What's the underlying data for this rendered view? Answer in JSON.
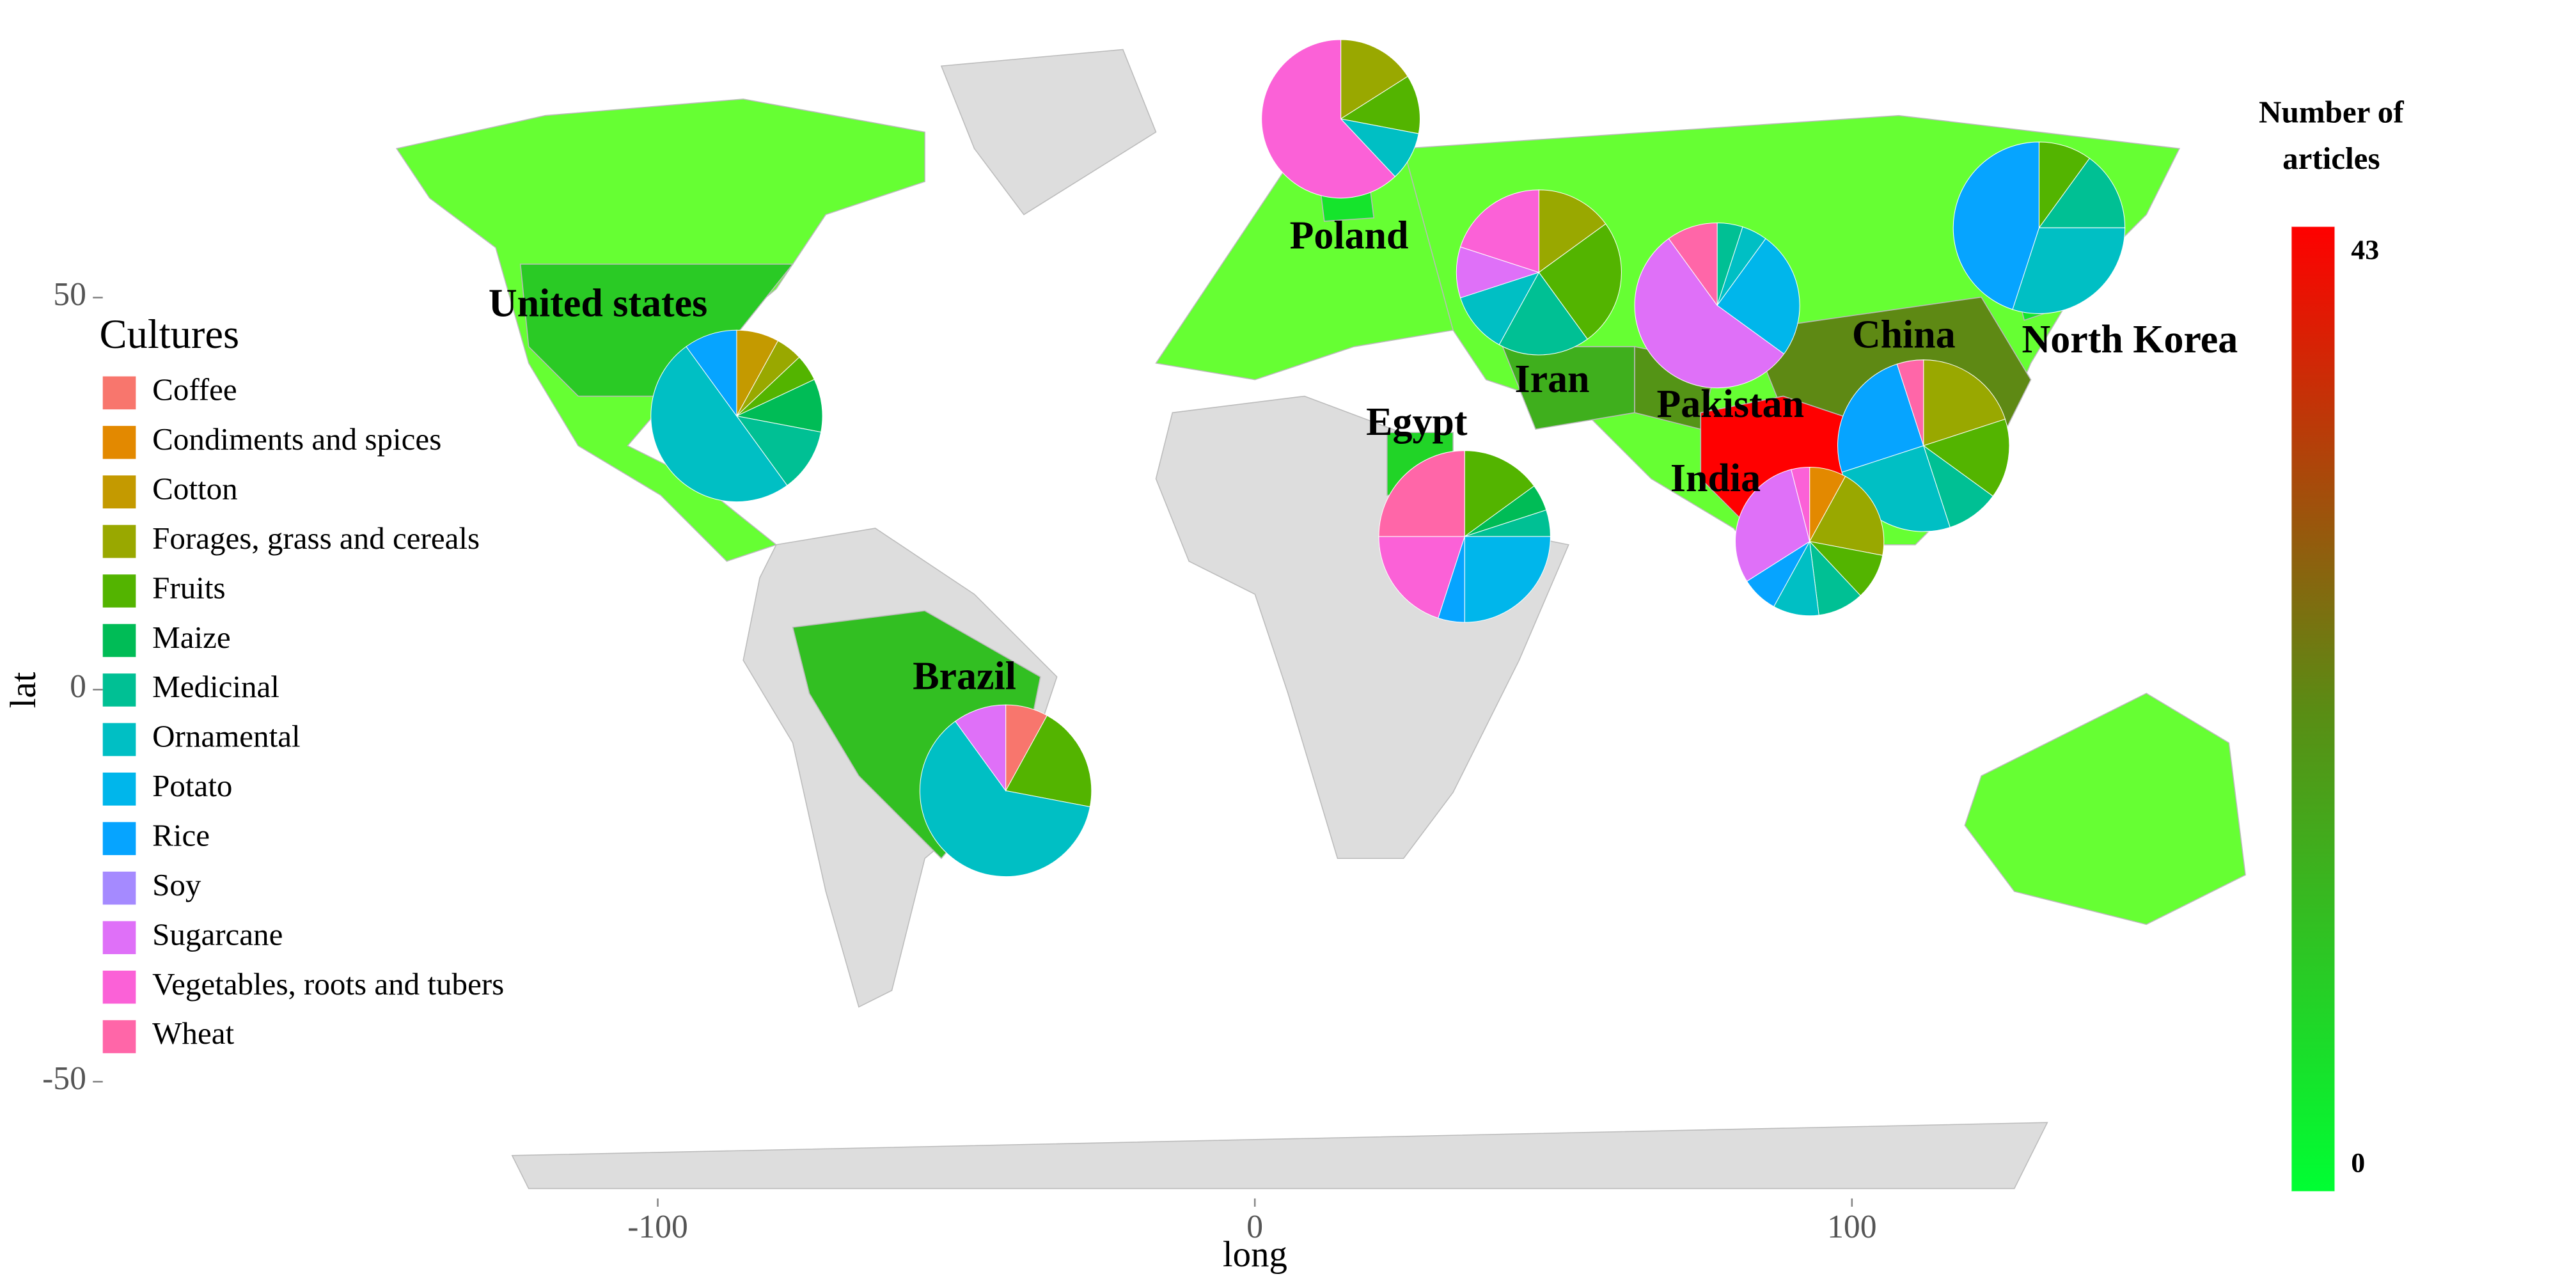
{
  "chart_data": {
    "type": "pie-map",
    "xlabel": "long",
    "ylabel": "lat",
    "xlim": [
      -170,
      180
    ],
    "ylim": [
      -75,
      85
    ],
    "xticks": [
      -100,
      0,
      100
    ],
    "yticks": [
      -50,
      0,
      50
    ],
    "legend_title": "Cultures",
    "categories": [
      "Coffee",
      "Condiments and spices",
      "Cotton",
      "Forages, grass and cereals",
      "Fruits",
      "Maize",
      "Medicinal",
      "Ornamental",
      "Potato",
      "Rice",
      "Soy",
      "Sugarcane",
      "Vegetables, roots and tubers",
      "Wheat"
    ],
    "colors": [
      "#f8766d",
      "#e38900",
      "#c49a00",
      "#99a800",
      "#53b400",
      "#00bc56",
      "#00c094",
      "#00bfc4",
      "#00b6eb",
      "#06a4ff",
      "#a58aff",
      "#df70f8",
      "#fb61d7",
      "#ff66a8"
    ],
    "colorbar": {
      "title": [
        "Number of",
        "articles"
      ],
      "lim": [
        0,
        43
      ],
      "ticks": [
        0,
        43
      ],
      "colors": [
        "#00ff33",
        "#5a8c14",
        "#ff0000"
      ]
    },
    "countries": [
      {
        "name": "United states",
        "articles": 10,
        "values": [
          0,
          0,
          8,
          5,
          5,
          10,
          12,
          50,
          0,
          10,
          0,
          0,
          0,
          0
        ]
      },
      {
        "name": "Poland",
        "articles": 5,
        "values": [
          0,
          0,
          0,
          16,
          12,
          0,
          0,
          10,
          0,
          0,
          0,
          0,
          62,
          0
        ]
      },
      {
        "name": "Iran",
        "articles": 15,
        "values": [
          0,
          0,
          0,
          15,
          25,
          0,
          18,
          12,
          0,
          0,
          0,
          10,
          20,
          0
        ]
      },
      {
        "name": "Pakistan",
        "articles": 20,
        "values": [
          0,
          0,
          0,
          0,
          0,
          0,
          5,
          5,
          25,
          0,
          0,
          55,
          0,
          10
        ]
      },
      {
        "name": "China",
        "articles": 22,
        "values": [
          0,
          0,
          0,
          20,
          15,
          0,
          10,
          25,
          0,
          25,
          0,
          0,
          0,
          5
        ]
      },
      {
        "name": "North Korea",
        "articles": 5,
        "values": [
          0,
          0,
          0,
          0,
          10,
          0,
          15,
          30,
          0,
          45,
          0,
          0,
          0,
          0
        ]
      },
      {
        "name": "Egypt",
        "articles": 8,
        "values": [
          0,
          0,
          0,
          0,
          15,
          5,
          5,
          0,
          25,
          5,
          0,
          0,
          20,
          25
        ]
      },
      {
        "name": "India",
        "articles": 43,
        "values": [
          0,
          8,
          0,
          20,
          10,
          0,
          10,
          10,
          0,
          8,
          0,
          30,
          4,
          0
        ]
      },
      {
        "name": "Brazil",
        "articles": 12,
        "values": [
          8,
          0,
          0,
          0,
          20,
          0,
          0,
          62,
          0,
          0,
          0,
          10,
          0,
          0
        ]
      }
    ]
  }
}
